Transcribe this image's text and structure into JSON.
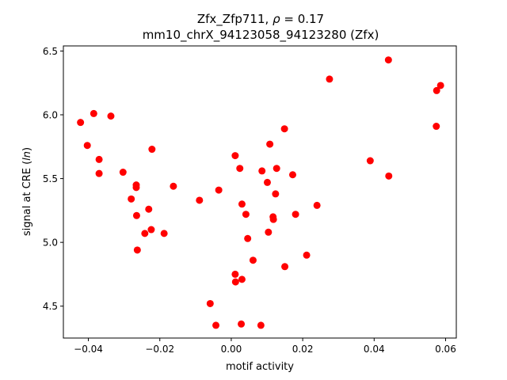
{
  "chart_data": {
    "type": "scatter",
    "title_line1_prefix": "Zfx_Zfp711, ",
    "title_line1_symbol": "ρ",
    "title_line1_suffix": " = 0.17",
    "title_line2": "mm10_chrX_94123058_94123280 (Zfx)",
    "xlabel": "motif activity",
    "ylabel_prefix": "signal at CRE (",
    "ylabel_symbol": "ln",
    "ylabel_suffix": ")",
    "xlim": [
      -0.047,
      0.063
    ],
    "ylim": [
      4.25,
      6.54
    ],
    "xticks": [
      -0.04,
      -0.02,
      0.0,
      0.02,
      0.04,
      0.06
    ],
    "xtick_labels": [
      "−0.04",
      "−0.02",
      "0.00",
      "0.02",
      "0.04",
      "0.06"
    ],
    "yticks": [
      4.5,
      5.0,
      5.5,
      6.0,
      6.5
    ],
    "ytick_labels": [
      "4.5",
      "5.0",
      "5.5",
      "6.0",
      "6.5"
    ],
    "grid": false,
    "marker_color": "#ff0000",
    "points": [
      {
        "x": -0.0422,
        "y": 5.94
      },
      {
        "x": -0.0403,
        "y": 5.76
      },
      {
        "x": -0.0385,
        "y": 6.01
      },
      {
        "x": -0.037,
        "y": 5.65
      },
      {
        "x": -0.037,
        "y": 5.54
      },
      {
        "x": -0.0337,
        "y": 5.99
      },
      {
        "x": -0.0303,
        "y": 5.55
      },
      {
        "x": -0.028,
        "y": 5.34
      },
      {
        "x": -0.0266,
        "y": 5.45
      },
      {
        "x": -0.0266,
        "y": 5.43
      },
      {
        "x": -0.0265,
        "y": 5.21
      },
      {
        "x": -0.0263,
        "y": 4.94
      },
      {
        "x": -0.0242,
        "y": 5.07
      },
      {
        "x": -0.0231,
        "y": 5.26
      },
      {
        "x": -0.0224,
        "y": 5.1
      },
      {
        "x": -0.0222,
        "y": 5.73
      },
      {
        "x": -0.0188,
        "y": 5.07
      },
      {
        "x": -0.0162,
        "y": 5.44
      },
      {
        "x": -0.0089,
        "y": 5.33
      },
      {
        "x": -0.0059,
        "y": 4.52
      },
      {
        "x": -0.0043,
        "y": 4.35
      },
      {
        "x": -0.0035,
        "y": 5.41
      },
      {
        "x": 0.0011,
        "y": 5.68
      },
      {
        "x": 0.0011,
        "y": 4.75
      },
      {
        "x": 0.0012,
        "y": 4.69
      },
      {
        "x": 0.0024,
        "y": 5.58
      },
      {
        "x": 0.0028,
        "y": 4.36
      },
      {
        "x": 0.003,
        "y": 5.3
      },
      {
        "x": 0.003,
        "y": 4.71
      },
      {
        "x": 0.0041,
        "y": 5.22
      },
      {
        "x": 0.0046,
        "y": 5.03
      },
      {
        "x": 0.0061,
        "y": 4.86
      },
      {
        "x": 0.0083,
        "y": 4.35
      },
      {
        "x": 0.0086,
        "y": 5.56
      },
      {
        "x": 0.0101,
        "y": 5.47
      },
      {
        "x": 0.0104,
        "y": 5.08
      },
      {
        "x": 0.0108,
        "y": 5.77
      },
      {
        "x": 0.0117,
        "y": 5.2
      },
      {
        "x": 0.0118,
        "y": 5.18
      },
      {
        "x": 0.0124,
        "y": 5.38
      },
      {
        "x": 0.0127,
        "y": 5.58
      },
      {
        "x": 0.0149,
        "y": 5.89
      },
      {
        "x": 0.015,
        "y": 4.81
      },
      {
        "x": 0.0172,
        "y": 5.53
      },
      {
        "x": 0.018,
        "y": 5.22
      },
      {
        "x": 0.0211,
        "y": 4.9
      },
      {
        "x": 0.024,
        "y": 5.29
      },
      {
        "x": 0.0275,
        "y": 6.28
      },
      {
        "x": 0.0389,
        "y": 5.64
      },
      {
        "x": 0.044,
        "y": 6.43
      },
      {
        "x": 0.0441,
        "y": 5.52
      },
      {
        "x": 0.0574,
        "y": 5.91
      },
      {
        "x": 0.0575,
        "y": 6.19
      },
      {
        "x": 0.0586,
        "y": 6.23
      }
    ]
  }
}
